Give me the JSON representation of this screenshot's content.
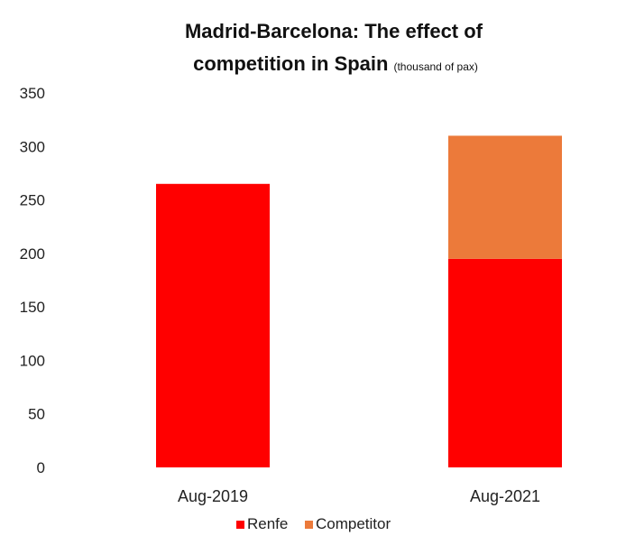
{
  "chart_data": {
    "type": "bar",
    "stacked": true,
    "title_line1": "Madrid-Barcelona: The effect of",
    "title_line2_main": "competition in ",
    "title_line2_bold": "Spain",
    "title_unit": "(thousand of pax)",
    "categories": [
      "Aug-2019",
      "Aug-2021"
    ],
    "series": [
      {
        "name": "Renfe",
        "values": [
          265,
          195
        ],
        "color": "#ff0000"
      },
      {
        "name": "Competitor",
        "values": [
          0,
          115
        ],
        "color": "#ec7a3a"
      }
    ],
    "ylim": [
      0,
      350
    ],
    "yticks": [
      "0",
      "50",
      "100",
      "150",
      "200",
      "250",
      "300",
      "350"
    ],
    "grid": false,
    "legend_position": "bottom"
  }
}
